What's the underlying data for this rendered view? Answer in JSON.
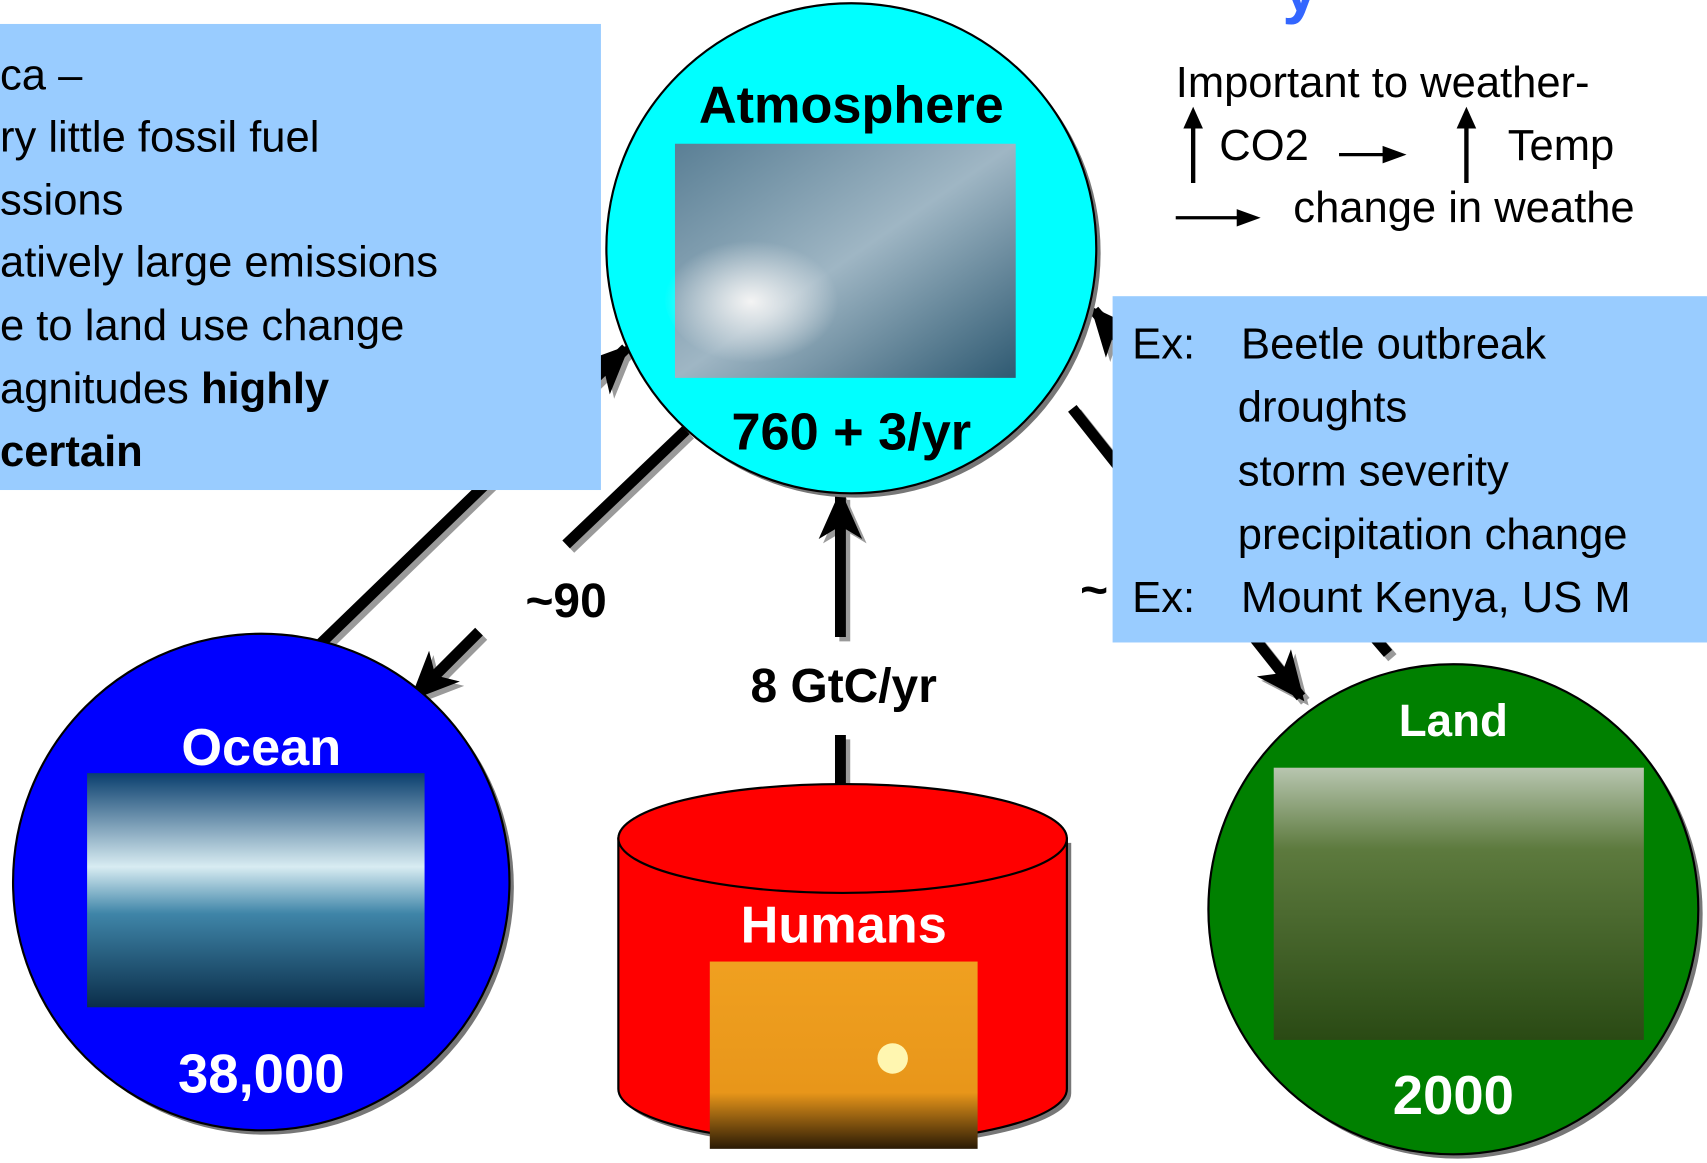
{
  "title_fragment": "y",
  "left_box": {
    "lines": [
      "ca –",
      "ry little fossil  fuel",
      "ssions",
      "atively large emissions",
      "e to land use change"
    ],
    "line6": {
      "text": "agnitudes ",
      "bold": "highly"
    },
    "bold_line": "certain"
  },
  "weather_note": {
    "line1": "Important to weather-",
    "co2": "CO2",
    "temp": "Temp",
    "line3": "change in weathe"
  },
  "right_box": {
    "ex1_label": "Ex:",
    "ex1_items": [
      "Beetle outbreak",
      "droughts",
      "storm severity",
      "precipitation change"
    ],
    "ex2_label": "Ex:",
    "ex2_item": "Mount Kenya, US M"
  },
  "nodes": {
    "atmosphere": {
      "label": "Atmosphere",
      "amount": "760 + 3/yr"
    },
    "ocean": {
      "label": "Ocean",
      "amount": "38,000"
    },
    "land": {
      "label": "Land",
      "amount": "2000"
    },
    "humans": {
      "label": "Humans"
    }
  },
  "flows": {
    "atmosphere_to_ocean": "~90",
    "humans_to_atmosphere": "8 GtC/yr",
    "atmosphere_to_land": "~"
  }
}
